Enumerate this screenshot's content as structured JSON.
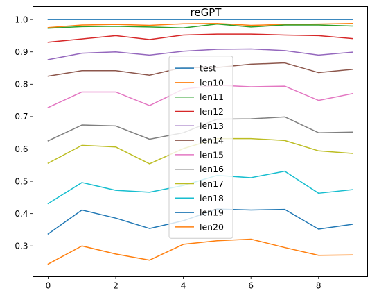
{
  "chart_data": {
    "type": "line",
    "title": "reGPT",
    "xlabel": "",
    "ylabel": "",
    "x": [
      0,
      1,
      2,
      3,
      4,
      5,
      6,
      7,
      8,
      9
    ],
    "xlim": [
      -0.45,
      9.45
    ],
    "ylim": [
      0.205,
      1.04
    ],
    "xticks": [
      0,
      2,
      4,
      6,
      8
    ],
    "yticks": [
      0.3,
      0.4,
      0.5,
      0.6,
      0.7,
      0.8,
      0.9,
      1.0
    ],
    "ytick_labels": [
      "0.3",
      "0.4",
      "0.5",
      "0.6",
      "0.7",
      "0.8",
      "0.9",
      "1.0"
    ],
    "grid": false,
    "legend_position": "center",
    "series": [
      {
        "name": "test",
        "color": "#1f77b4",
        "values": [
          1.0,
          1.0,
          1.0,
          1.0,
          1.0,
          1.0,
          1.0,
          1.0,
          1.0,
          1.0
        ]
      },
      {
        "name": "len10",
        "color": "#ff7f0e",
        "values": [
          0.975,
          0.983,
          0.985,
          0.982,
          0.987,
          0.988,
          0.982,
          0.985,
          0.986,
          0.988
        ]
      },
      {
        "name": "len11",
        "color": "#2ca02c",
        "values": [
          0.973,
          0.978,
          0.979,
          0.977,
          0.974,
          0.986,
          0.977,
          0.983,
          0.983,
          0.98
        ]
      },
      {
        "name": "len12",
        "color": "#d62728",
        "values": [
          0.93,
          0.94,
          0.95,
          0.938,
          0.952,
          0.955,
          0.955,
          0.952,
          0.95,
          0.941
        ]
      },
      {
        "name": "len13",
        "color": "#9467bd",
        "values": [
          0.876,
          0.896,
          0.9,
          0.89,
          0.902,
          0.908,
          0.909,
          0.904,
          0.89,
          0.899
        ]
      },
      {
        "name": "len14",
        "color": "#8c564b",
        "values": [
          0.825,
          0.842,
          0.842,
          0.828,
          0.852,
          0.852,
          0.862,
          0.866,
          0.836,
          0.846
        ]
      },
      {
        "name": "len15",
        "color": "#e377c2",
        "values": [
          0.728,
          0.776,
          0.776,
          0.734,
          0.785,
          0.797,
          0.792,
          0.794,
          0.75,
          0.771
        ]
      },
      {
        "name": "len16",
        "color": "#7f7f7f",
        "values": [
          0.625,
          0.674,
          0.671,
          0.63,
          0.65,
          0.692,
          0.693,
          0.699,
          0.65,
          0.652
        ]
      },
      {
        "name": "len17",
        "color": "#bcbd22",
        "values": [
          0.556,
          0.611,
          0.606,
          0.554,
          0.601,
          0.632,
          0.632,
          0.626,
          0.594,
          0.586
        ]
      },
      {
        "name": "len18",
        "color": "#17becf",
        "values": [
          0.431,
          0.496,
          0.472,
          0.466,
          0.487,
          0.518,
          0.511,
          0.531,
          0.463,
          0.474
        ]
      },
      {
        "name": "len19",
        "color": "#1f77b4",
        "values": [
          0.337,
          0.411,
          0.386,
          0.354,
          0.378,
          0.414,
          0.411,
          0.413,
          0.352,
          0.367
        ]
      },
      {
        "name": "len20",
        "color": "#ff7f0e",
        "values": [
          0.244,
          0.3,
          0.275,
          0.256,
          0.305,
          0.316,
          0.321,
          0.295,
          0.271,
          0.272
        ]
      }
    ]
  }
}
